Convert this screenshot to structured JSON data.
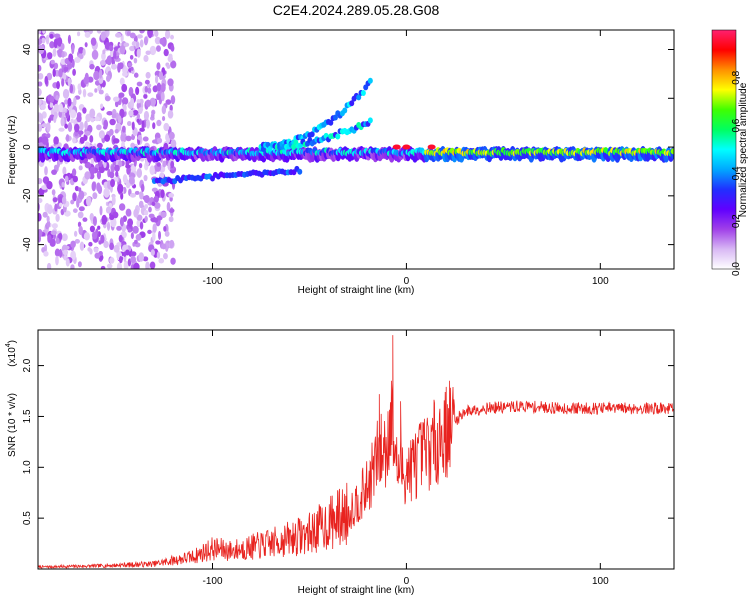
{
  "title": "C2E4.2024.289.05.28.G08",
  "colors": {
    "snr_line": "#e8231f",
    "spectrogram_background": "#ffffff",
    "frame": "#000000"
  },
  "chart_data": [
    {
      "type": "heatmap",
      "name": "spectrogram",
      "xlabel": "Height of straight line (km)",
      "ylabel": "Frequency (Hz)",
      "xlim": [
        -190,
        138
      ],
      "ylim": [
        -50,
        48
      ],
      "xticks": [
        -100,
        0,
        100
      ],
      "xtick_labels": [
        "-100",
        "0",
        "100"
      ],
      "yticks": [
        -40,
        -20,
        0,
        20,
        40
      ],
      "ytick_labels": [
        "-40",
        "-20",
        "0",
        "20",
        "40"
      ],
      "colorbar": {
        "label": "Normalized spectral amplitude",
        "range": [
          0,
          1
        ],
        "ticks": [
          0.0,
          0.2,
          0.4,
          0.6,
          0.8
        ],
        "tick_labels": [
          "0.0",
          "0.2",
          "0.4",
          "0.6",
          "0.8"
        ],
        "colormap": [
          "#ffffff",
          "#d8b8f4",
          "#a040e8",
          "#6000ff",
          "#2030ff",
          "#00a8ff",
          "#00ffff",
          "#00ff60",
          "#40ff00",
          "#ffff00",
          "#ff9000",
          "#ff0000",
          "#ff2070"
        ]
      },
      "features": [
        {
          "label": "carrier",
          "x_range": [
            -190,
            138
          ],
          "freq_hz": -3,
          "amplitude": 0.45
        },
        {
          "label": "lower branch",
          "x_range": [
            -130,
            -55
          ],
          "freq_hz": -14,
          "amplitude": 0.3
        },
        {
          "label": "rising branch",
          "x_range": [
            -75,
            -18
          ],
          "freq_hz_start": 0,
          "freq_hz_end": 27,
          "amplitude": 0.35
        },
        {
          "label": "strong segment",
          "x_range": [
            10,
            138
          ],
          "freq_hz": 0,
          "amplitude": 0.7
        }
      ]
    },
    {
      "type": "line",
      "name": "snr",
      "xlabel": "Height of straight line (km)",
      "ylabel": "SNR (10 * v/v)",
      "multiplier": "(x10",
      "multiplier_exponent": "4",
      "xlim": [
        -190,
        138
      ],
      "ylim": [
        0,
        2.35
      ],
      "xticks": [
        -100,
        0,
        100
      ],
      "xtick_labels": [
        "-100",
        "0",
        "100"
      ],
      "yticks": [
        0.5,
        1.0,
        1.5,
        2.0
      ],
      "ytick_labels": [
        "0.5",
        "1.0",
        "1.5",
        "2.0"
      ],
      "envelope": {
        "x": [
          -190,
          -160,
          -130,
          -110,
          -100,
          -90,
          -70,
          -50,
          -30,
          -20,
          -15,
          -10,
          -8,
          -5,
          0,
          10,
          20,
          30,
          40,
          60,
          80,
          100,
          120,
          138
        ],
        "y": [
          0.02,
          0.03,
          0.05,
          0.12,
          0.2,
          0.18,
          0.25,
          0.35,
          0.55,
          0.8,
          1.1,
          1.2,
          1.6,
          1.0,
          0.95,
          1.15,
          1.35,
          1.55,
          1.58,
          1.6,
          1.58,
          1.58,
          1.58,
          1.58
        ]
      },
      "peaks": [
        {
          "x": -7,
          "y": 2.3
        },
        {
          "x": -14,
          "y": 1.72
        },
        {
          "x": -3,
          "y": 1.65
        }
      ]
    }
  ]
}
